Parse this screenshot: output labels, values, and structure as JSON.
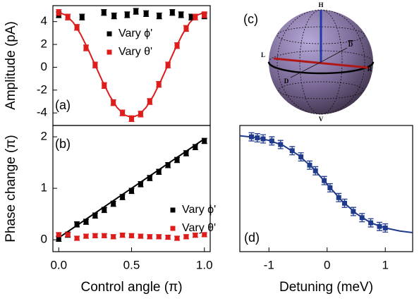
{
  "chart_data": [
    {
      "type": "scatter",
      "panel_label": "(a)",
      "ylabel": "Amplitude (pA)",
      "xlim": [
        -0.04,
        1.04
      ],
      "ylim": [
        -5.1,
        5.4
      ],
      "yticks": [
        4,
        2,
        0,
        -2,
        -4
      ],
      "series": [
        {
          "name": "Vary ϕ'",
          "color": "#000000",
          "x": [
            0,
            0.16,
            0.31,
            0.38,
            0.47,
            0.53,
            0.6,
            0.69,
            0.78,
            0.84,
            0.91,
            1.0
          ],
          "values": [
            4.6,
            4.4,
            4.8,
            4.5,
            4.6,
            4.9,
            4.7,
            4.5,
            4.8,
            4.6,
            4.4,
            4.5
          ],
          "errors": [
            0.25,
            0.25,
            0.25,
            0.25,
            0.25,
            0.25,
            0.25,
            0.25,
            0.25,
            0.25,
            0.25,
            0.25
          ]
        },
        {
          "name": "Vary θ'",
          "color": "#dd1c1c",
          "x": [
            0,
            0.0625,
            0.125,
            0.1875,
            0.25,
            0.3125,
            0.375,
            0.4375,
            0.5,
            0.5625,
            0.625,
            0.6875,
            0.75,
            0.8125,
            0.875,
            0.9375,
            1
          ],
          "values": [
            4.8,
            4.4,
            3.5,
            1.7,
            0.2,
            -1.6,
            -3.1,
            -4.0,
            -4.5,
            -4.1,
            -3.0,
            -1.5,
            0.2,
            1.9,
            3.4,
            4.4,
            4.6
          ],
          "errors": [
            0.25,
            0.25,
            0.25,
            0.25,
            0.25,
            0.25,
            0.25,
            0.25,
            0.25,
            0.25,
            0.25,
            0.25,
            0.25,
            0.25,
            0.25,
            0.25,
            0.25
          ]
        }
      ],
      "fits": [
        {
          "color": "#dd1c1c",
          "x": [
            0,
            0.05,
            0.1,
            0.15,
            0.2,
            0.25,
            0.3,
            0.35,
            0.4,
            0.45,
            0.5,
            0.55,
            0.6,
            0.65,
            0.7,
            0.75,
            0.8,
            0.85,
            0.9,
            0.95,
            1
          ],
          "values": [
            4.8,
            4.57,
            3.92,
            2.9,
            1.62,
            0.2,
            -1.22,
            -2.5,
            -3.52,
            -4.17,
            -4.4,
            -4.17,
            -3.52,
            -2.5,
            -1.22,
            0.2,
            1.62,
            2.9,
            3.92,
            4.57,
            4.8
          ]
        }
      ]
    },
    {
      "type": "scatter",
      "panel_label": "(b)",
      "ylabel": "Phase change (π)",
      "xlabel": "Control angle (π)",
      "xlim": [
        -0.04,
        1.04
      ],
      "ylim": [
        -0.23,
        2.22
      ],
      "xticks": [
        {
          "value": 0,
          "label": "0.0"
        },
        {
          "value": 0.5,
          "label": "0.5"
        },
        {
          "value": 1,
          "label": "1.0"
        }
      ],
      "yticks": [
        0,
        1,
        2
      ],
      "series": [
        {
          "name": "Vary ϕ'",
          "color": "#000000",
          "x": [
            0,
            0.0625,
            0.125,
            0.1875,
            0.25,
            0.3125,
            0.375,
            0.4375,
            0.5,
            0.5625,
            0.625,
            0.6875,
            0.75,
            0.8125,
            0.875,
            0.9375,
            1
          ],
          "values": [
            0.02,
            0.1,
            0.3,
            0.35,
            0.47,
            0.58,
            0.7,
            0.83,
            0.95,
            1.08,
            1.2,
            1.32,
            1.45,
            1.55,
            1.68,
            1.8,
            1.92
          ],
          "errors": [
            0.05,
            0.05,
            0.05,
            0.05,
            0.05,
            0.05,
            0.05,
            0.05,
            0.05,
            0.05,
            0.05,
            0.05,
            0.05,
            0.05,
            0.05,
            0.05,
            0.05
          ]
        },
        {
          "name": "Vary θ'",
          "color": "#dd1c1c",
          "x": [
            0,
            0.0625,
            0.125,
            0.1875,
            0.25,
            0.3125,
            0.375,
            0.4375,
            0.5,
            0.5625,
            0.625,
            0.6875,
            0.75,
            0.8125,
            0.875,
            0.9375,
            1
          ],
          "values": [
            0.1,
            0.1,
            0.03,
            0.07,
            0.08,
            0.08,
            0.06,
            0.09,
            0.08,
            0.07,
            0.06,
            0.06,
            0.05,
            0.03,
            0.06,
            0.09,
            0.1
          ],
          "errors": [
            0.04,
            0.04,
            0.04,
            0.04,
            0.04,
            0.04,
            0.04,
            0.04,
            0.04,
            0.04,
            0.04,
            0.04,
            0.04,
            0.04,
            0.04,
            0.04,
            0.04
          ]
        }
      ],
      "fits": [
        {
          "color": "#000000",
          "x": [
            0,
            1
          ],
          "values": [
            0.04,
            1.96
          ]
        }
      ]
    },
    {
      "type": "scatter",
      "panel_label": "(d)",
      "xlabel": "Detuning (meV)",
      "xlim": [
        -1.5,
        1.47
      ],
      "ylim": [
        -0.23,
        2.22
      ],
      "xticks": [
        -1,
        0,
        1
      ],
      "series": [
        {
          "color": "#1f3a8c",
          "x": [
            -1.3,
            -1.2,
            -1.1,
            -0.95,
            -0.8,
            -0.6,
            -0.45,
            -0.3,
            -0.2,
            -0.05,
            0.05,
            0.2,
            0.3,
            0.45,
            0.6,
            0.75,
            0.9,
            1.0
          ],
          "values": [
            2.0,
            1.98,
            1.96,
            1.92,
            1.85,
            1.73,
            1.61,
            1.45,
            1.34,
            1.15,
            1.01,
            0.82,
            0.71,
            0.55,
            0.43,
            0.33,
            0.26,
            0.23
          ],
          "errors": [
            0.08,
            0.08,
            0.08,
            0.08,
            0.08,
            0.08,
            0.08,
            0.08,
            0.08,
            0.08,
            0.08,
            0.08,
            0.08,
            0.08,
            0.08,
            0.08,
            0.08,
            0.08
          ]
        }
      ],
      "fits": [
        {
          "color": "#1f3a8c",
          "x": [
            -1.5,
            -1.25,
            -1,
            -0.75,
            -0.5,
            -0.25,
            0,
            0.25,
            0.5,
            0.75,
            1,
            1.25,
            1.47
          ],
          "values": [
            2.02,
            1.99,
            1.93,
            1.83,
            1.65,
            1.4,
            1.08,
            0.76,
            0.51,
            0.33,
            0.23,
            0.17,
            0.14
          ]
        }
      ]
    }
  ],
  "bloch_sphere": {
    "panel_label": "(c)",
    "labels": {
      "H": "H",
      "V": "V",
      "L": "L",
      "R": "R",
      "D": "D",
      "Dbar": "D"
    }
  }
}
